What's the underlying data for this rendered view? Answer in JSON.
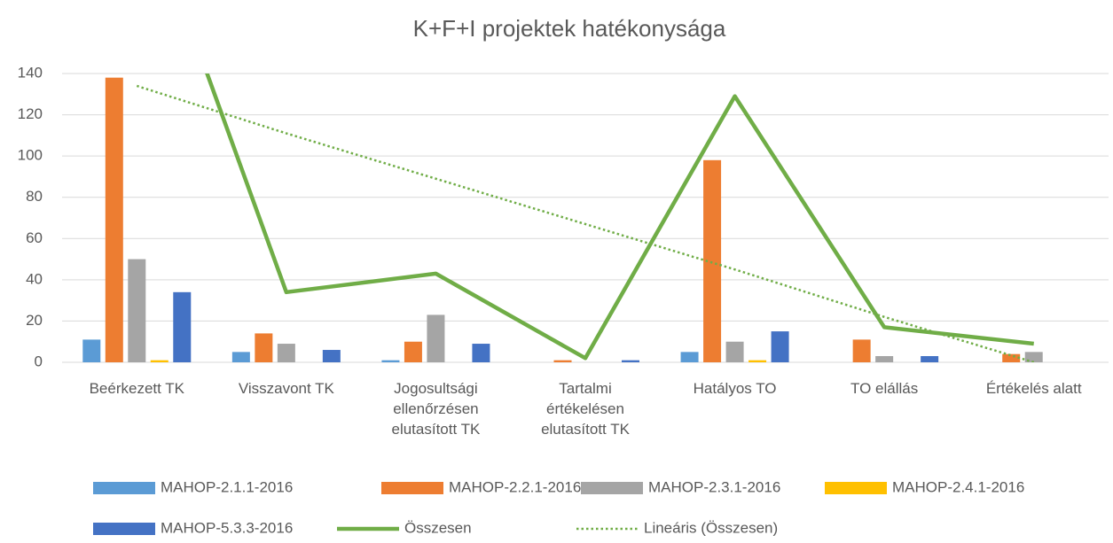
{
  "chart_data": {
    "type": "bar",
    "title": "K+F+I projektek hatékonysága",
    "categories": [
      "Beérkezett TK",
      "Visszavont TK",
      "Jogosultsági ellenőrzésen elutasított TK",
      "Tartalmi értékelésen elutasított TK",
      "Hatályos TO",
      "TO elállás",
      "Értékelés alatt"
    ],
    "series": [
      {
        "name": "MAHOP-2.1.1-2016",
        "color": "#5b9bd5",
        "type": "bar",
        "values": [
          11,
          5,
          1,
          0,
          5,
          0,
          0
        ]
      },
      {
        "name": "MAHOP-2.2.1-2016",
        "color": "#ed7d31",
        "type": "bar",
        "values": [
          138,
          14,
          10,
          1,
          98,
          11,
          4
        ]
      },
      {
        "name": "MAHOP-2.3.1-2016",
        "color": "#a5a5a5",
        "type": "bar",
        "values": [
          50,
          9,
          23,
          0,
          10,
          3,
          5
        ]
      },
      {
        "name": "MAHOP-2.4.1-2016",
        "color": "#ffc000",
        "type": "bar",
        "values": [
          1,
          0,
          0,
          0,
          1,
          0,
          0
        ]
      },
      {
        "name": "MAHOP-5.3.3-2016",
        "color": "#4472c4",
        "type": "bar",
        "values": [
          34,
          6,
          9,
          1,
          15,
          3,
          0
        ]
      },
      {
        "name": "Összesen",
        "color": "#70ad47",
        "type": "line",
        "values": [
          234,
          34,
          43,
          2,
          129,
          17,
          9
        ]
      },
      {
        "name": "Lineáris (Összesen)",
        "color": "#70ad47",
        "type": "dotted",
        "values": [
          134,
          111,
          89,
          67,
          45,
          22,
          0
        ]
      }
    ],
    "ylim": [
      0,
      140
    ],
    "yticks": [
      0,
      20,
      40,
      60,
      80,
      100,
      120,
      140
    ],
    "grid": true,
    "legend": "bottom"
  }
}
